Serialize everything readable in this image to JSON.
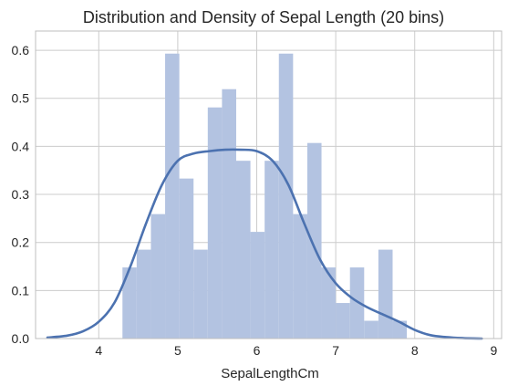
{
  "chart_data": {
    "type": "bar",
    "title": "Distribution and Density of Sepal Length (20 bins)",
    "xlabel": "SepalLengthCm",
    "ylabel": "",
    "xlim": [
      3.2,
      9.1
    ],
    "ylim": [
      0.0,
      0.64
    ],
    "grid": true,
    "xticks": [
      "4",
      "5",
      "6",
      "7",
      "8",
      "9"
    ],
    "yticks": [
      "0.0",
      "0.1",
      "0.2",
      "0.3",
      "0.4",
      "0.5",
      "0.6"
    ],
    "colors": {
      "histogram": "#b3c3e1",
      "kde": "#4c72b0",
      "grid": "#cccccc",
      "axes_border": "#bfbfbf",
      "text": "#262626",
      "background": "#ffffff"
    },
    "histogram": {
      "bin_edges": [
        4.3,
        4.48,
        4.66,
        4.84,
        5.02,
        5.2,
        5.38,
        5.56,
        5.74,
        5.92,
        6.1,
        6.28,
        6.46,
        6.64,
        6.82,
        7.0,
        7.18,
        7.36,
        7.54,
        7.72,
        7.9
      ],
      "density": [
        0.148,
        0.185,
        0.259,
        0.593,
        0.333,
        0.185,
        0.481,
        0.519,
        0.37,
        0.222,
        0.37,
        0.593,
        0.259,
        0.407,
        0.148,
        0.074,
        0.148,
        0.037,
        0.185,
        0.037
      ]
    },
    "kde": {
      "x": [
        3.35,
        3.6,
        3.8,
        4.0,
        4.2,
        4.4,
        4.6,
        4.8,
        5.0,
        5.2,
        5.4,
        5.6,
        5.8,
        6.0,
        6.2,
        6.4,
        6.6,
        6.8,
        7.0,
        7.2,
        7.4,
        7.6,
        7.8,
        8.0,
        8.2,
        8.4,
        8.6,
        8.85
      ],
      "y": [
        0.002,
        0.006,
        0.015,
        0.035,
        0.075,
        0.15,
        0.24,
        0.32,
        0.37,
        0.385,
        0.39,
        0.393,
        0.393,
        0.39,
        0.37,
        0.32,
        0.24,
        0.165,
        0.115,
        0.085,
        0.065,
        0.05,
        0.035,
        0.018,
        0.007,
        0.003,
        0.001,
        0.0
      ]
    }
  }
}
